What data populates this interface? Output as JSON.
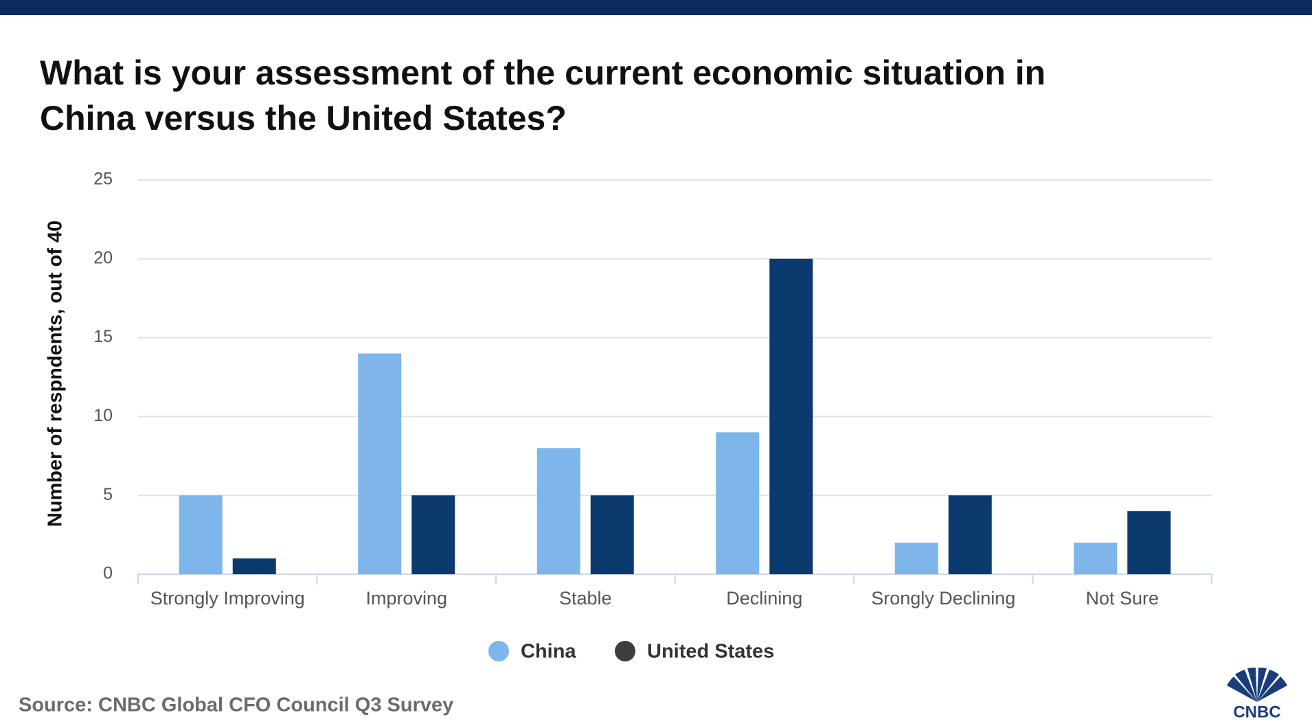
{
  "chart_data": {
    "type": "bar",
    "title": "What is your assessment of the current economic situation in China versus the United States?",
    "y_label": "Number of respndents, out of 40",
    "source": "Source: CNBC Global CFO Council Q3 Survey",
    "logo": "CNBC",
    "categories": [
      "Strongly Improving",
      "Improving",
      "Stable",
      "Declining",
      "Srongly Declining",
      "Not Sure"
    ],
    "series": [
      {
        "name": "China",
        "color": "#7eb5ea",
        "marker_color": "#7eb5ea",
        "values": [
          5,
          14,
          8,
          9,
          2,
          2
        ]
      },
      {
        "name": "United States",
        "color": "#0b3a6f",
        "marker_color": "#3d3d3d",
        "values": [
          1,
          5,
          5,
          20,
          5,
          4
        ]
      }
    ],
    "ylim": [
      0,
      25
    ],
    "yticks": [
      0,
      5,
      10,
      15,
      20,
      25
    ],
    "grid": true,
    "legend": "bottom"
  }
}
